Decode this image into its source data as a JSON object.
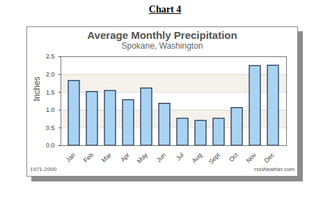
{
  "heading": "Chart 4",
  "chart_data": {
    "type": "bar",
    "title": "Average Monthly Precipitation",
    "subtitle": "Spokane, Washington",
    "ylabel": "Inches",
    "categories": [
      "Jan",
      "Feb",
      "Mar",
      "Apr",
      "May",
      "Jun",
      "Jul",
      "Aug",
      "Sept",
      "Oct",
      "Nov",
      "Dec"
    ],
    "values": [
      1.82,
      1.51,
      1.54,
      1.28,
      1.61,
      1.18,
      0.76,
      0.7,
      0.76,
      1.06,
      2.24,
      2.25
    ],
    "color": "#a9d3f2",
    "ylim": [
      0,
      2.5
    ],
    "yticks": [
      {
        "value": 0,
        "label": "0.0"
      },
      {
        "value": 0.5,
        "label": "0.5"
      },
      {
        "value": 1,
        "label": "1.0"
      },
      {
        "value": 1.5,
        "label": "1.5"
      },
      {
        "value": 2,
        "label": "2.0"
      },
      {
        "value": 2.5,
        "label": "2.5"
      }
    ],
    "grid": true,
    "annotations": [
      "1971-2000",
      "rssWeather.com"
    ]
  }
}
